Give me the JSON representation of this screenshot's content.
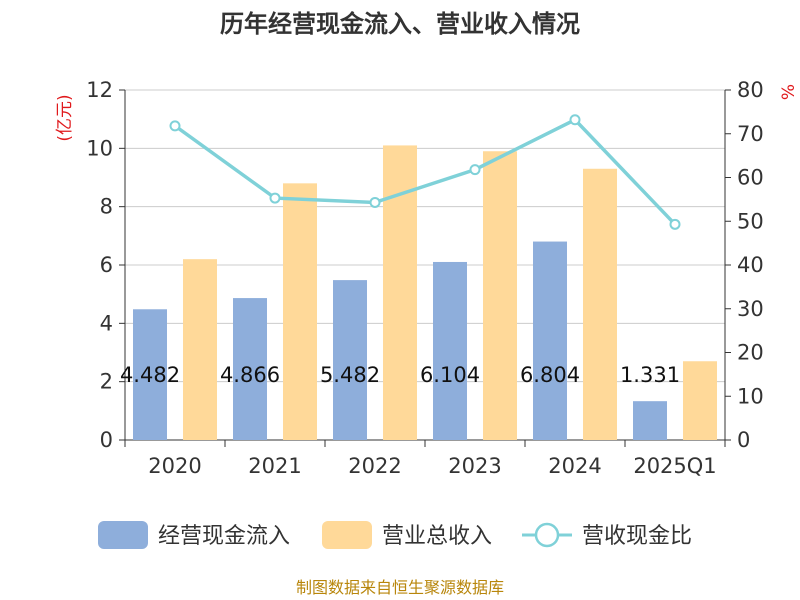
{
  "chart_data": {
    "type": "bar",
    "title": "历年经营现金流入、营业收入情况",
    "categories": [
      "2020",
      "2021",
      "2022",
      "2023",
      "2024",
      "2025Q1"
    ],
    "y_left": {
      "unit_label": "(亿元)",
      "ylim": [
        0,
        12
      ],
      "ticks": [
        0,
        2,
        4,
        6,
        8,
        10,
        12
      ]
    },
    "y_right": {
      "unit_label": "%",
      "ylim": [
        0,
        80
      ],
      "ticks": [
        0,
        10,
        20,
        30,
        40,
        50,
        60,
        70,
        80
      ]
    },
    "series": [
      {
        "name": "经营现金流入",
        "type": "bar",
        "axis": "left",
        "color": "#8eaedb",
        "values": [
          4.482,
          4.866,
          5.482,
          6.104,
          6.804,
          1.331
        ],
        "labels": [
          "4.482",
          "4.866",
          "5.482",
          "6.104",
          "6.804",
          "1.331"
        ]
      },
      {
        "name": "营业总收入",
        "type": "bar",
        "axis": "left",
        "color": "#ffd999",
        "values": [
          6.2,
          8.8,
          10.1,
          9.9,
          9.3,
          2.7
        ]
      },
      {
        "name": "营收现金比",
        "type": "line",
        "axis": "right",
        "color": "#7fd1d8",
        "values": [
          71.8,
          55.3,
          54.3,
          61.8,
          73.2,
          49.3
        ]
      }
    ],
    "grid": true,
    "legend_position": "bottom",
    "source": "制图数据来自恒生聚源数据库"
  }
}
